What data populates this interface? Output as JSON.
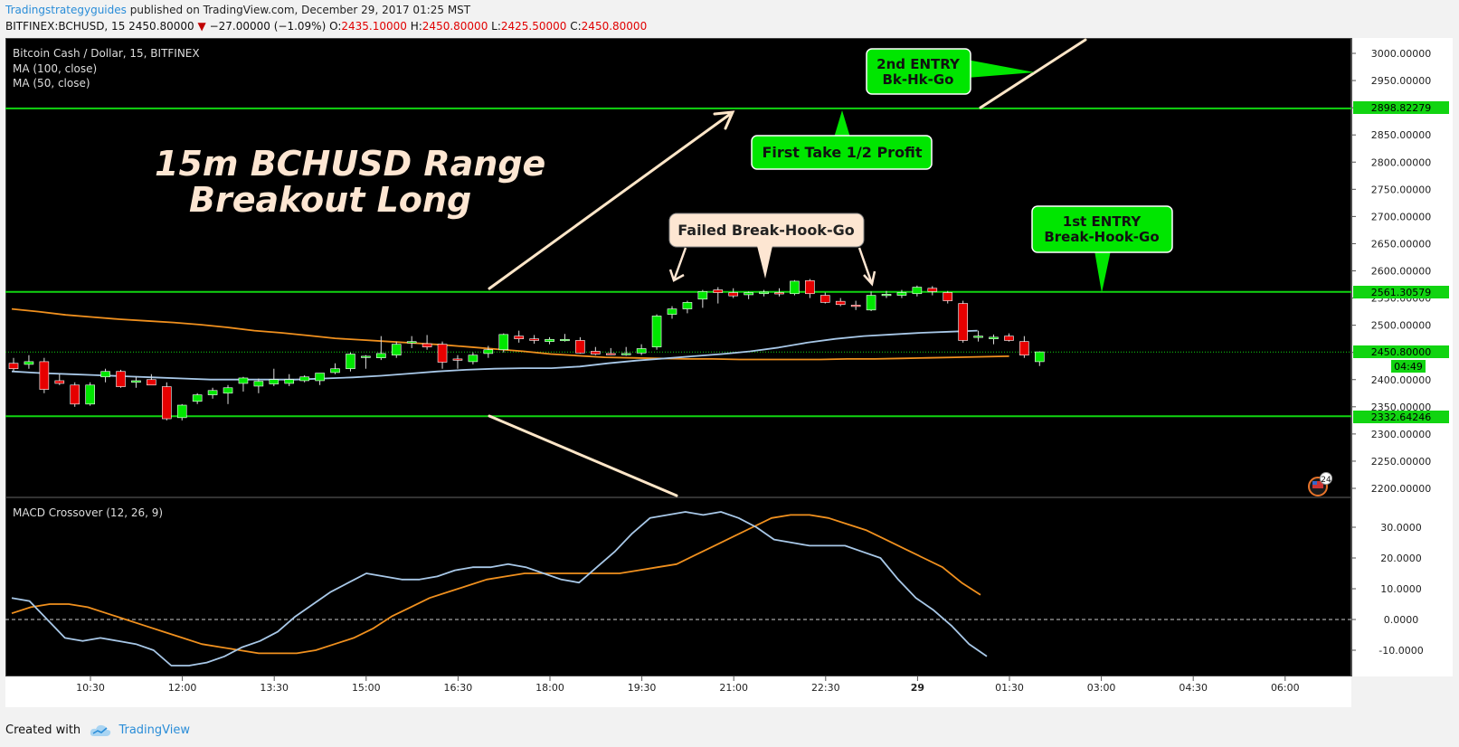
{
  "header": {
    "author": "Tradingstrategyguides",
    "published": "published on TradingView.com, December 29, 2017 01:25 MST",
    "symbol": "BITFINEX:BCHUSD, 15",
    "last": "2450.80000",
    "change": "−27.00000 (−1.09%)",
    "o_label": "O:",
    "o": "2435.10000",
    "h_label": "H:",
    "h": "2450.80000",
    "l_label": "L:",
    "l": "2425.50000",
    "c_label": "C:",
    "c": "2450.80000"
  },
  "legend": {
    "title": "Bitcoin Cash / Dollar, 15, BITFINEX",
    "ma100": "MA (100, close)",
    "ma50": "MA (50, close)",
    "macd": "MACD Crossover (12, 26, 9)"
  },
  "annotations": {
    "title_line1": "15m BCHUSD Range",
    "title_line2": "Breakout Long",
    "failed": "Failed Break-Hook-Go",
    "first_take": "First Take 1/2 Profit",
    "second_entry_1": "2nd ENTRY",
    "second_entry_2": "Bk-Hk-Go",
    "first_entry_1": "1st ENTRY",
    "first_entry_2": "Break-Hook-Go"
  },
  "price_axis": {
    "ticks": [
      "3000.00000",
      "2950.00000",
      "2900.00000",
      "2850.00000",
      "2800.00000",
      "2750.00000",
      "2700.00000",
      "2650.00000",
      "2600.00000",
      "2550.00000",
      "2500.00000",
      "2450.00000",
      "2400.00000",
      "2350.00000",
      "2300.00000",
      "2250.00000",
      "2200.00000"
    ],
    "label_resistance": "2898.82279",
    "label_range_top": "2561.30579",
    "label_last": "2450.80000",
    "label_countdown": "04:49",
    "label_range_bottom": "2332.64246"
  },
  "macd_axis": {
    "ticks": [
      "30.0000",
      "20.0000",
      "10.0000",
      "0.0000",
      "-10.0000"
    ]
  },
  "time_axis": {
    "ticks": [
      "10:30",
      "12:00",
      "13:30",
      "15:00",
      "16:30",
      "18:00",
      "19:30",
      "21:00",
      "22:30",
      "29",
      "01:30",
      "03:00",
      "04:30",
      "06:00"
    ]
  },
  "badge": "24",
  "footer": {
    "created": "Created with",
    "brand": "TradingView"
  },
  "colors": {
    "up": "#00e600",
    "down": "#e60000",
    "ma100": "#f0901e",
    "ma50": "#a8c8e8",
    "hline": "#11d411",
    "arrow": "#ffe6c8",
    "callout_green": "#00e600",
    "callout_peach": "#fde6d2"
  },
  "chart_data": {
    "type": "candlestick",
    "title": "Bitcoin Cash / Dollar, 15, BITFINEX",
    "x_ticks": [
      "10:30",
      "12:00",
      "13:30",
      "15:00",
      "16:30",
      "18:00",
      "19:30",
      "21:00",
      "22:30",
      "29",
      "01:30",
      "03:00",
      "04:30",
      "06:00"
    ],
    "price_ylim": [
      2190,
      3025
    ],
    "horizontal_levels": [
      2898.82279,
      2561.30579,
      2332.64246
    ],
    "last_price": 2450.8,
    "candles_ohlc": [
      [
        2430,
        2440,
        2415,
        2420
      ],
      [
        2428,
        2445,
        2420,
        2433
      ],
      [
        2433,
        2440,
        2375,
        2382
      ],
      [
        2398,
        2410,
        2390,
        2393
      ],
      [
        2390,
        2395,
        2350,
        2355
      ],
      [
        2355,
        2395,
        2352,
        2390
      ],
      [
        2405,
        2420,
        2395,
        2415
      ],
      [
        2415,
        2418,
        2385,
        2387
      ],
      [
        2395,
        2405,
        2385,
        2398
      ],
      [
        2400,
        2410,
        2390,
        2390
      ],
      [
        2387,
        2395,
        2325,
        2328
      ],
      [
        2330,
        2355,
        2325,
        2353
      ],
      [
        2360,
        2375,
        2355,
        2372
      ],
      [
        2372,
        2385,
        2365,
        2380
      ],
      [
        2375,
        2390,
        2355,
        2385
      ],
      [
        2393,
        2405,
        2378,
        2403
      ],
      [
        2388,
        2402,
        2375,
        2397
      ],
      [
        2392,
        2420,
        2388,
        2400
      ],
      [
        2393,
        2410,
        2388,
        2400
      ],
      [
        2398,
        2408,
        2395,
        2405
      ],
      [
        2398,
        2410,
        2390,
        2412
      ],
      [
        2413,
        2430,
        2410,
        2420
      ],
      [
        2420,
        2450,
        2415,
        2447
      ],
      [
        2442,
        2445,
        2420,
        2443
      ],
      [
        2440,
        2480,
        2436,
        2448
      ],
      [
        2445,
        2470,
        2440,
        2465
      ],
      [
        2468,
        2480,
        2458,
        2470
      ],
      [
        2466,
        2482,
        2455,
        2460
      ],
      [
        2465,
        2470,
        2420,
        2432
      ],
      [
        2438,
        2445,
        2420,
        2436
      ],
      [
        2433,
        2450,
        2428,
        2445
      ],
      [
        2448,
        2462,
        2440,
        2455
      ],
      [
        2455,
        2485,
        2450,
        2483
      ],
      [
        2480,
        2490,
        2468,
        2475
      ],
      [
        2475,
        2482,
        2466,
        2472
      ],
      [
        2470,
        2478,
        2465,
        2474
      ],
      [
        2473,
        2484,
        2470,
        2474
      ],
      [
        2472,
        2478,
        2448,
        2449
      ],
      [
        2452,
        2460,
        2445,
        2447
      ],
      [
        2448,
        2458,
        2445,
        2447
      ],
      [
        2448,
        2460,
        2444,
        2448
      ],
      [
        2449,
        2465,
        2445,
        2457
      ],
      [
        2460,
        2520,
        2455,
        2517
      ],
      [
        2520,
        2535,
        2512,
        2530
      ],
      [
        2530,
        2545,
        2522,
        2542
      ],
      [
        2548,
        2565,
        2532,
        2562
      ],
      [
        2565,
        2570,
        2540,
        2560
      ],
      [
        2560,
        2568,
        2550,
        2554
      ],
      [
        2556,
        2562,
        2548,
        2560
      ],
      [
        2558,
        2565,
        2553,
        2561
      ],
      [
        2560,
        2568,
        2553,
        2558
      ],
      [
        2558,
        2583,
        2555,
        2581
      ],
      [
        2582,
        2585,
        2550,
        2558
      ],
      [
        2555,
        2560,
        2540,
        2542
      ],
      [
        2544,
        2550,
        2535,
        2538
      ],
      [
        2537,
        2545,
        2528,
        2535
      ],
      [
        2528,
        2562,
        2526,
        2555
      ],
      [
        2555,
        2563,
        2550,
        2557
      ],
      [
        2555,
        2565,
        2550,
        2560
      ],
      [
        2558,
        2573,
        2553,
        2570
      ],
      [
        2568,
        2572,
        2555,
        2562
      ],
      [
        2560,
        2563,
        2540,
        2545
      ],
      [
        2540,
        2545,
        2468,
        2472
      ],
      [
        2478,
        2490,
        2470,
        2480
      ],
      [
        2475,
        2483,
        2465,
        2478
      ],
      [
        2480,
        2485,
        2470,
        2472
      ],
      [
        2470,
        2480,
        2440,
        2445
      ],
      [
        2433,
        2452,
        2425,
        2451
      ]
    ],
    "ma100": [
      2530,
      2525,
      2519,
      2515,
      2511,
      2508,
      2505,
      2501,
      2496,
      2490,
      2486,
      2481,
      2476,
      2473,
      2470,
      2467,
      2464,
      2460,
      2456,
      2452,
      2447,
      2444,
      2441,
      2440,
      2439,
      2438,
      2438,
      2437,
      2437,
      2437,
      2437,
      2438,
      2438,
      2439,
      2440,
      2441,
      2442,
      2443
    ],
    "ma50": [
      2415,
      2412,
      2410,
      2408,
      2406,
      2404,
      2402,
      2400,
      2400,
      2400,
      2400,
      2402,
      2404,
      2407,
      2411,
      2415,
      2418,
      2420,
      2421,
      2421,
      2424,
      2430,
      2435,
      2439,
      2443,
      2447,
      2452,
      2459,
      2468,
      2475,
      2480,
      2483,
      2486,
      2488,
      2490
    ],
    "macd_ylim": [
      -18,
      39
    ],
    "macd_zero": 0,
    "macd_line": [
      7,
      6,
      0,
      -6,
      -7,
      -6,
      -7,
      -8,
      -10,
      -15,
      -15,
      -14,
      -12,
      -9,
      -7,
      -4,
      1,
      5,
      9,
      12,
      15,
      14,
      13,
      13,
      14,
      16,
      17,
      17,
      18,
      17,
      15,
      13,
      12,
      17,
      22,
      28,
      33,
      34,
      35,
      34,
      35,
      33,
      30,
      26,
      25,
      24,
      24,
      24,
      22,
      20,
      13,
      7,
      3,
      -2,
      -8,
      -12
    ],
    "macd_signal": [
      2,
      4,
      5,
      5,
      4,
      2,
      0,
      -2,
      -4,
      -6,
      -8,
      -9,
      -10,
      -11,
      -11,
      -11,
      -10,
      -8,
      -6,
      -3,
      1,
      4,
      7,
      9,
      11,
      13,
      14,
      15,
      15,
      15,
      15,
      15,
      15,
      16,
      17,
      18,
      21,
      24,
      27,
      30,
      33,
      34,
      34,
      33,
      31,
      29,
      26,
      23,
      20,
      17,
      12,
      8
    ]
  }
}
